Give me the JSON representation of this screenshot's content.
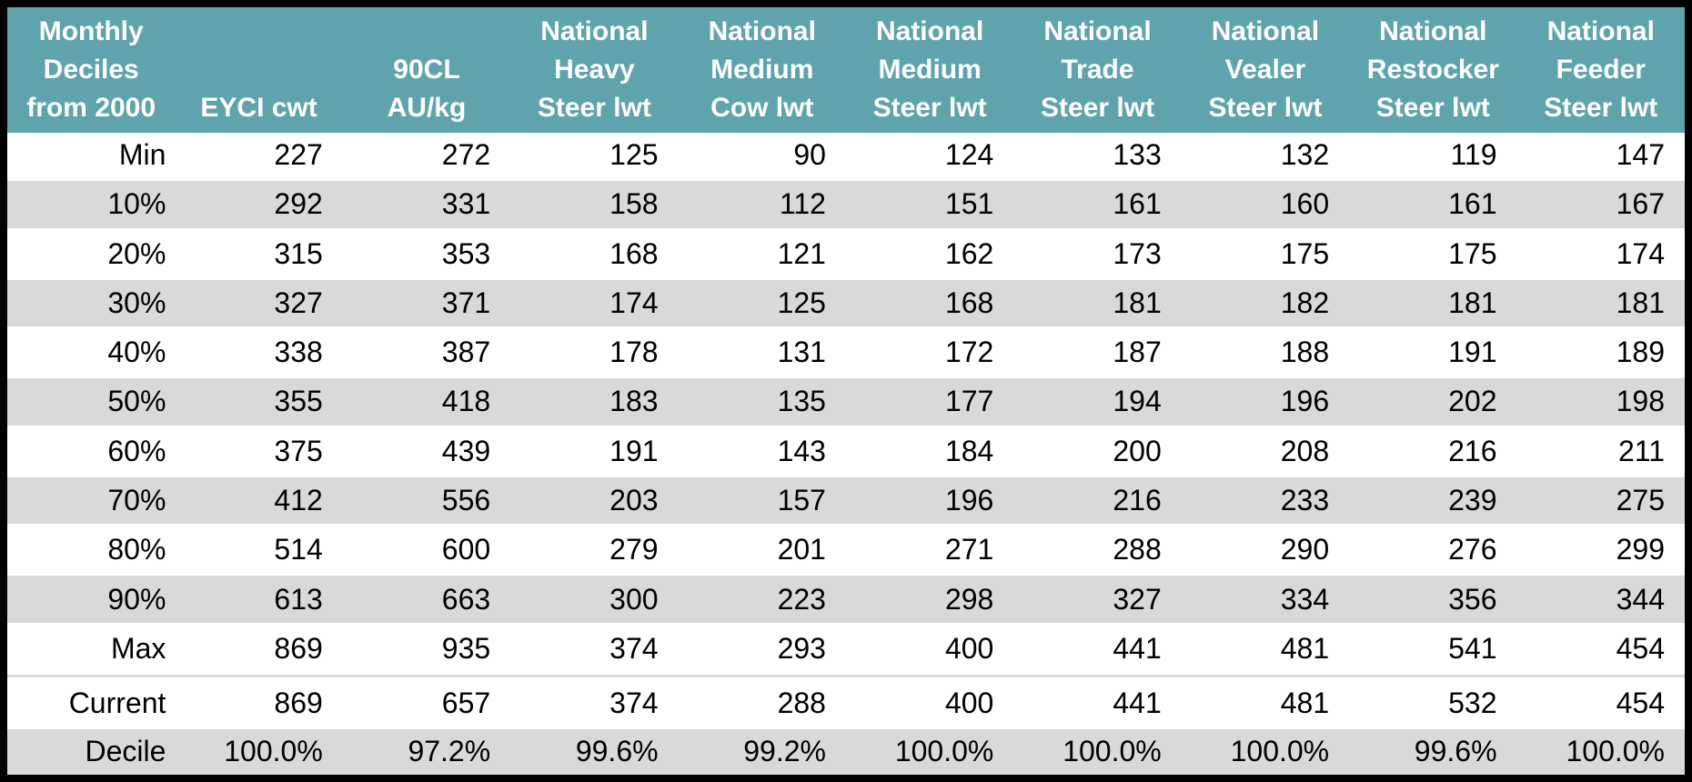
{
  "colors": {
    "header_bg": "#5FA4AC",
    "header_text": "#FFFFFF",
    "stripe_bg": "#D9D9D9",
    "row_bg": "#FFFFFF",
    "text": "#000000",
    "outer_border": "#000000"
  },
  "chart_data": {
    "type": "table",
    "header": [
      [
        "Monthly",
        "Deciles",
        "from 2000"
      ],
      [
        "",
        "",
        "EYCI cwt"
      ],
      [
        "",
        "90CL",
        "AU/kg"
      ],
      [
        "National",
        "Heavy",
        "Steer lwt"
      ],
      [
        "National",
        "Medium",
        "Cow lwt"
      ],
      [
        "National",
        "Medium",
        "Steer lwt"
      ],
      [
        "National",
        "Trade",
        "Steer lwt"
      ],
      [
        "National",
        "Vealer",
        "Steer lwt"
      ],
      [
        "National",
        "Restocker",
        "Steer lwt"
      ],
      [
        "National",
        "Feeder",
        "Steer lwt"
      ]
    ],
    "rows": [
      {
        "label": "Min",
        "values": [
          "227",
          "272",
          "125",
          "90",
          "124",
          "133",
          "132",
          "119",
          "147"
        ]
      },
      {
        "label": "10%",
        "values": [
          "292",
          "331",
          "158",
          "112",
          "151",
          "161",
          "160",
          "161",
          "167"
        ]
      },
      {
        "label": "20%",
        "values": [
          "315",
          "353",
          "168",
          "121",
          "162",
          "173",
          "175",
          "175",
          "174"
        ]
      },
      {
        "label": "30%",
        "values": [
          "327",
          "371",
          "174",
          "125",
          "168",
          "181",
          "182",
          "181",
          "181"
        ]
      },
      {
        "label": "40%",
        "values": [
          "338",
          "387",
          "178",
          "131",
          "172",
          "187",
          "188",
          "191",
          "189"
        ]
      },
      {
        "label": "50%",
        "values": [
          "355",
          "418",
          "183",
          "135",
          "177",
          "194",
          "196",
          "202",
          "198"
        ]
      },
      {
        "label": "60%",
        "values": [
          "375",
          "439",
          "191",
          "143",
          "184",
          "200",
          "208",
          "216",
          "211"
        ]
      },
      {
        "label": "70%",
        "values": [
          "412",
          "556",
          "203",
          "157",
          "196",
          "216",
          "233",
          "239",
          "275"
        ]
      },
      {
        "label": "80%",
        "values": [
          "514",
          "600",
          "279",
          "201",
          "271",
          "288",
          "290",
          "276",
          "299"
        ]
      },
      {
        "label": "90%",
        "values": [
          "613",
          "663",
          "300",
          "223",
          "298",
          "327",
          "334",
          "356",
          "344"
        ]
      },
      {
        "label": "Max",
        "values": [
          "869",
          "935",
          "374",
          "293",
          "400",
          "441",
          "481",
          "541",
          "454"
        ]
      },
      {
        "label": "",
        "values": [
          "",
          "",
          "",
          "",
          "",
          "",
          "",
          "",
          ""
        ]
      },
      {
        "label": "Current",
        "values": [
          "869",
          "657",
          "374",
          "288",
          "400",
          "441",
          "481",
          "532",
          "454"
        ]
      },
      {
        "label": "Decile",
        "values": [
          "100.0%",
          "97.2%",
          "99.6%",
          "99.2%",
          "100.0%",
          "100.0%",
          "100.0%",
          "99.6%",
          "100.0%"
        ]
      }
    ]
  }
}
